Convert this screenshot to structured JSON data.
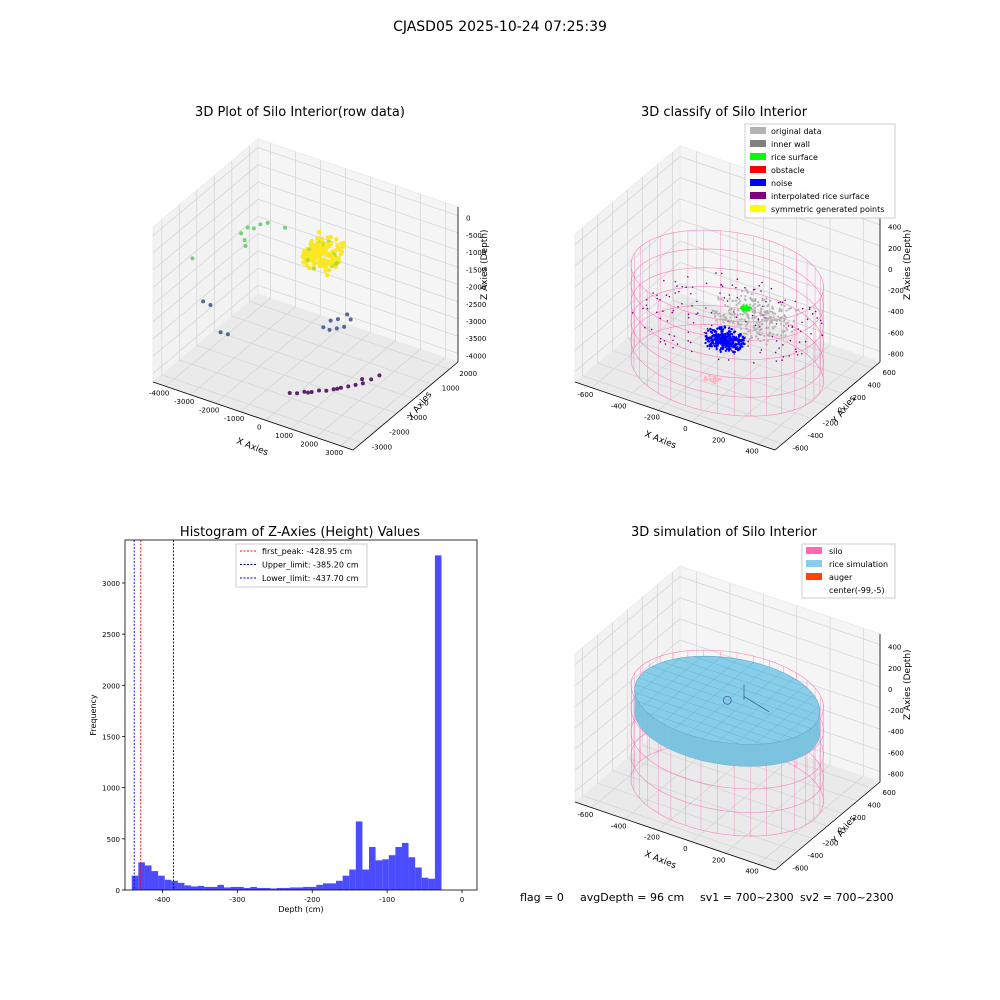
{
  "suptitle": "CJASD05 2025-10-24 07:25:39",
  "chart_data": [
    {
      "type": "scatter",
      "title": "3D Plot of Silo Interior(row data)",
      "xlabel": "X Axies",
      "ylabel": "Y Axies",
      "zlabel": "Z Axies (Depth)",
      "x_ticks": [
        "-4000",
        "-3000",
        "-2000",
        "-1000",
        "0",
        "1000",
        "2000",
        "3000"
      ],
      "y_ticks": [
        "-3000",
        "-2000",
        "-1000",
        "0",
        "1000",
        "2000"
      ],
      "z_ticks": [
        "-4000",
        "-3500",
        "-3000",
        "-2500",
        "-2000",
        "-1500",
        "-1000",
        "-500",
        "0"
      ],
      "xlim": [
        -4200,
        3200
      ],
      "ylim": [
        -3000,
        2500
      ],
      "zlim": [
        -4300,
        200
      ],
      "colormap": [
        "#440154",
        "#3b528b",
        "#21918c",
        "#5ec962",
        "#fde725"
      ],
      "points": [
        {
          "x": 2200,
          "y": -200,
          "z": -3700
        },
        {
          "x": 2000,
          "y": -350,
          "z": -3800
        },
        {
          "x": 1800,
          "y": -500,
          "z": -3900
        },
        {
          "x": 1600,
          "y": -600,
          "z": -3950
        },
        {
          "x": 1400,
          "y": -700,
          "z": -4000
        },
        {
          "x": 1200,
          "y": -800,
          "z": -4050
        },
        {
          "x": 1000,
          "y": -900,
          "z": -4100
        },
        {
          "x": 800,
          "y": -1000,
          "z": -4150
        },
        {
          "x": 600,
          "y": -1100,
          "z": -4150
        },
        {
          "x": 400,
          "y": -1200,
          "z": -4200
        },
        {
          "x": 200,
          "y": -1300,
          "z": -4200
        },
        {
          "x": 0,
          "y": -1400,
          "z": -4250
        },
        {
          "x": -200,
          "y": -1500,
          "z": -4250
        },
        {
          "x": 1700,
          "y": -400,
          "z": -3850
        },
        {
          "x": 1100,
          "y": -850,
          "z": -4080
        },
        {
          "x": 300,
          "y": -1250,
          "z": -4220
        },
        {
          "x": -2900,
          "y": -1300,
          "z": -3300
        },
        {
          "x": -2700,
          "y": -1200,
          "z": -3350
        },
        {
          "x": 100,
          "y": 600,
          "z": -3000
        },
        {
          "x": 300,
          "y": 800,
          "z": -2900
        },
        {
          "x": -100,
          "y": 500,
          "z": -3050
        },
        {
          "x": 200,
          "y": 400,
          "z": -3150
        },
        {
          "x": 500,
          "y": 700,
          "z": -2950
        },
        {
          "x": 0,
          "y": 300,
          "z": -3200
        },
        {
          "x": 400,
          "y": 500,
          "z": -3100
        },
        {
          "x": -300,
          "y": 400,
          "z": -3250
        },
        {
          "x": -3800,
          "y": -1500,
          "z": -1300
        },
        {
          "x": -3900,
          "y": -800,
          "z": -2900
        },
        {
          "x": -3700,
          "y": -700,
          "z": -3000
        },
        {
          "x": -3200,
          "y": 200,
          "z": -1200
        },
        {
          "x": -3100,
          "y": 400,
          "z": -1100
        },
        {
          "x": -3000,
          "y": 100,
          "z": -1300
        },
        {
          "x": -2800,
          "y": 300,
          "z": -1000
        },
        {
          "x": -2700,
          "y": 500,
          "z": -950
        },
        {
          "x": -2500,
          "y": 600,
          "z": -900
        },
        {
          "x": -2900,
          "y": 0,
          "z": -1400
        },
        {
          "x": -2000,
          "y": 800,
          "z": -1000
        }
      ],
      "dense_cluster": {
        "x": [
          -600,
          400
        ],
        "y": [
          -400,
          600
        ],
        "z": [
          -1200,
          -600
        ],
        "color": "#fde725"
      }
    },
    {
      "type": "scatter",
      "title": "3D classify of Silo Interior",
      "xlabel": "X Axies",
      "ylabel": "Y Axies",
      "zlabel": "Z Axies (Depth)",
      "x_ticks": [
        "-600",
        "-400",
        "-200",
        "0",
        "200",
        "400"
      ],
      "y_ticks": [
        "-600",
        "-400",
        "-200",
        "0",
        "200",
        "400",
        "600"
      ],
      "z_ticks": [
        "-800",
        "-600",
        "-400",
        "-200",
        "0",
        "200",
        "400"
      ],
      "xlim": [
        -700,
        500
      ],
      "ylim": [
        -650,
        650
      ],
      "zlim": [
        -900,
        450
      ],
      "legend": {
        "location": "top-right",
        "entries": [
          {
            "label": "original data",
            "color": "#b3b3b3"
          },
          {
            "label": "inner wall",
            "color": "#808080"
          },
          {
            "label": "rice surface",
            "color": "#00ff00"
          },
          {
            "label": "obstacle",
            "color": "#ff0000"
          },
          {
            "label": "noise",
            "color": "#0000ff"
          },
          {
            "label": "interpolated rice surface",
            "color": "#800080"
          },
          {
            "label": "symmetric generated points",
            "color": "#ffff00"
          }
        ]
      },
      "silo_cylinder": {
        "radius": 520,
        "z_top": -20,
        "z_bottom": -880,
        "color": "#ff69b4"
      }
    },
    {
      "type": "bar",
      "title": "Histogram of Z-Axies (Height) Values",
      "xlabel": "Depth (cm)",
      "ylabel": "Frequency",
      "x_ticks": [
        -400,
        -300,
        -200,
        -100,
        0
      ],
      "y_ticks": [
        0,
        500,
        1000,
        1500,
        2000,
        2500,
        3000
      ],
      "xlim": [
        -450,
        20
      ],
      "ylim": [
        0,
        3420
      ],
      "bar_color": "#0000ff",
      "bin_start": -441,
      "bin_width": 8.8,
      "counts": [
        140,
        270,
        240,
        185,
        140,
        100,
        90,
        70,
        45,
        35,
        40,
        30,
        30,
        50,
        25,
        30,
        30,
        20,
        30,
        20,
        20,
        15,
        20,
        20,
        25,
        25,
        30,
        30,
        50,
        65,
        65,
        90,
        140,
        200,
        670,
        200,
        420,
        290,
        300,
        340,
        420,
        460,
        320,
        220,
        120,
        110,
        3270
      ],
      "legend": {
        "location": "top-center",
        "entries": [
          {
            "label": "first_peak: -428.95 cm",
            "value": -428.95,
            "color": "#ff0000"
          },
          {
            "label": "Upper_limit: -385.20 cm",
            "value": -385.2,
            "color": "#00008b"
          },
          {
            "label": "Lower_limit: -437.70 cm",
            "value": -437.7,
            "color": "#0000ff"
          }
        ]
      }
    },
    {
      "type": "scatter",
      "title": "3D simulation of Silo Interior",
      "xlabel": "X Axies",
      "ylabel": "Y Axies",
      "zlabel": "Z Axies (Depth)",
      "x_ticks": [
        "-600",
        "-400",
        "-200",
        "0",
        "200",
        "400"
      ],
      "y_ticks": [
        "-600",
        "-400",
        "-200",
        "0",
        "200",
        "400",
        "600"
      ],
      "z_ticks": [
        "-800",
        "-600",
        "-400",
        "-200",
        "0",
        "200",
        "400"
      ],
      "legend": {
        "location": "top-right",
        "entries": [
          {
            "label": "silo",
            "color": "#ff69b4"
          },
          {
            "label": "rice simulation",
            "color": "#87ceeb"
          },
          {
            "label": "auger",
            "color": "#ff4500"
          },
          {
            "label": "center(-99,-5)",
            "color": "#ffffff"
          }
        ]
      }
    }
  ],
  "status": {
    "flag": "flag = 0",
    "avg_depth": "avgDepth = 96 cm",
    "sv1": "sv1 = 700~2300",
    "sv2": "sv2 = 700~2300"
  }
}
